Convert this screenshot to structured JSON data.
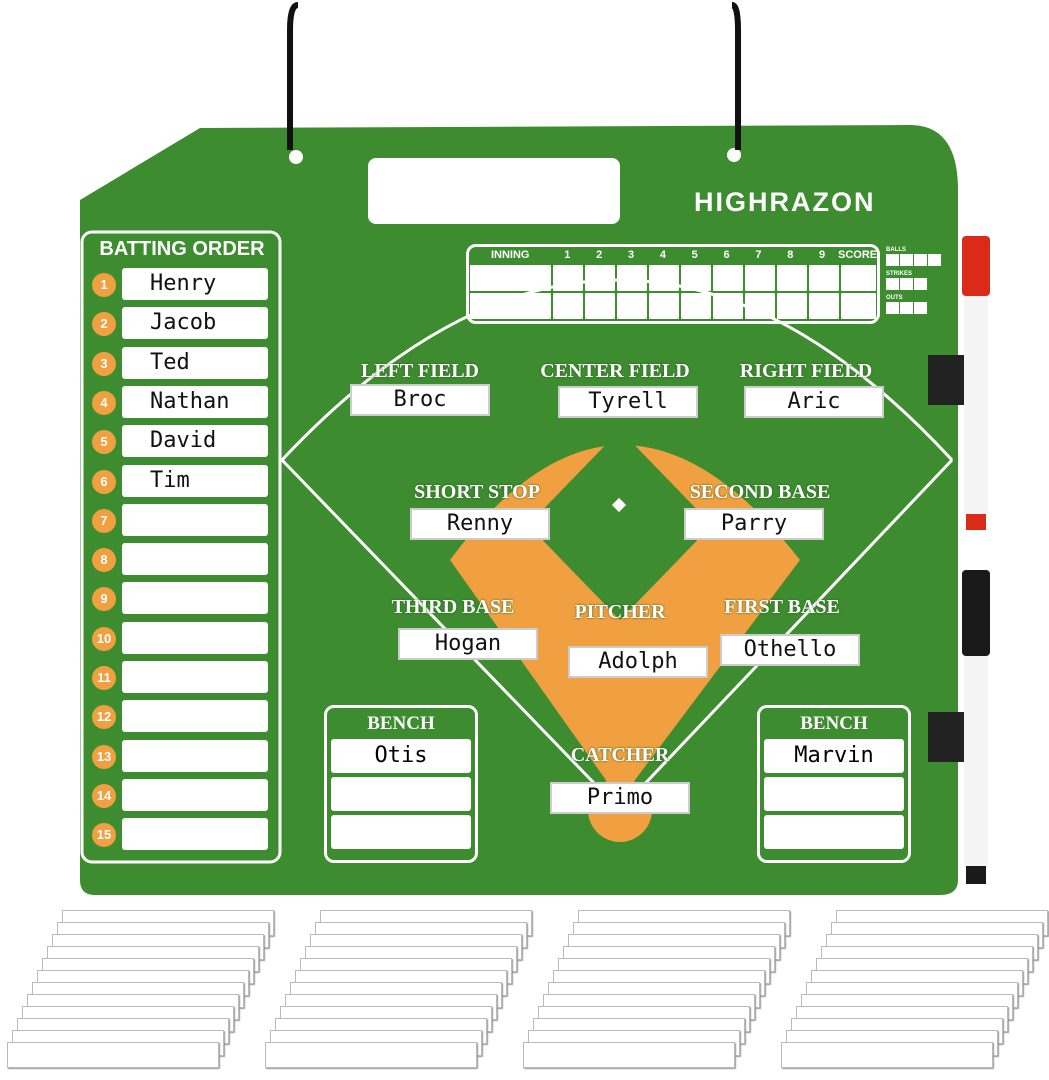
{
  "brand": "HIGHRAZON",
  "colors": {
    "field": "#3d8c2f",
    "infield": "#f0a040",
    "marker_red": "#d92a1a",
    "marker_black": "#1a1a1a"
  },
  "batting_order": {
    "title": "BATTING ORDER",
    "players": [
      "Henry",
      "Jacob",
      "Ted",
      "Nathan",
      "David",
      "Tim",
      "",
      "",
      "",
      "",
      "",
      "",
      "",
      "",
      ""
    ]
  },
  "scoreboard": {
    "headers": [
      "INNING",
      "1",
      "2",
      "3",
      "4",
      "5",
      "6",
      "7",
      "8",
      "9",
      "SCORE"
    ],
    "balls": "BALLS",
    "strikes": "STRIKES",
    "outs": "OUTS"
  },
  "positions": {
    "left_field": {
      "label": "LEFT FIELD",
      "name": "Broc"
    },
    "center_field": {
      "label": "CENTER FIELD",
      "name": "Tyrell"
    },
    "right_field": {
      "label": "RIGHT FIELD",
      "name": "Aric"
    },
    "short_stop": {
      "label": "SHORT STOP",
      "name": "Renny"
    },
    "second_base": {
      "label": "SECOND BASE",
      "name": "Parry"
    },
    "third_base": {
      "label": "THIRD BASE",
      "name": "Hogan"
    },
    "pitcher": {
      "label": "PITCHER",
      "name": "Adolph"
    },
    "first_base": {
      "label": "FIRST BASE",
      "name": "Othello"
    },
    "catcher": {
      "label": "CATCHER",
      "name": "Primo"
    }
  },
  "bench_left": {
    "title": "BENCH",
    "names": [
      "Otis",
      "",
      ""
    ]
  },
  "bench_right": {
    "title": "BENCH",
    "names": [
      "Marvin",
      "",
      ""
    ]
  }
}
